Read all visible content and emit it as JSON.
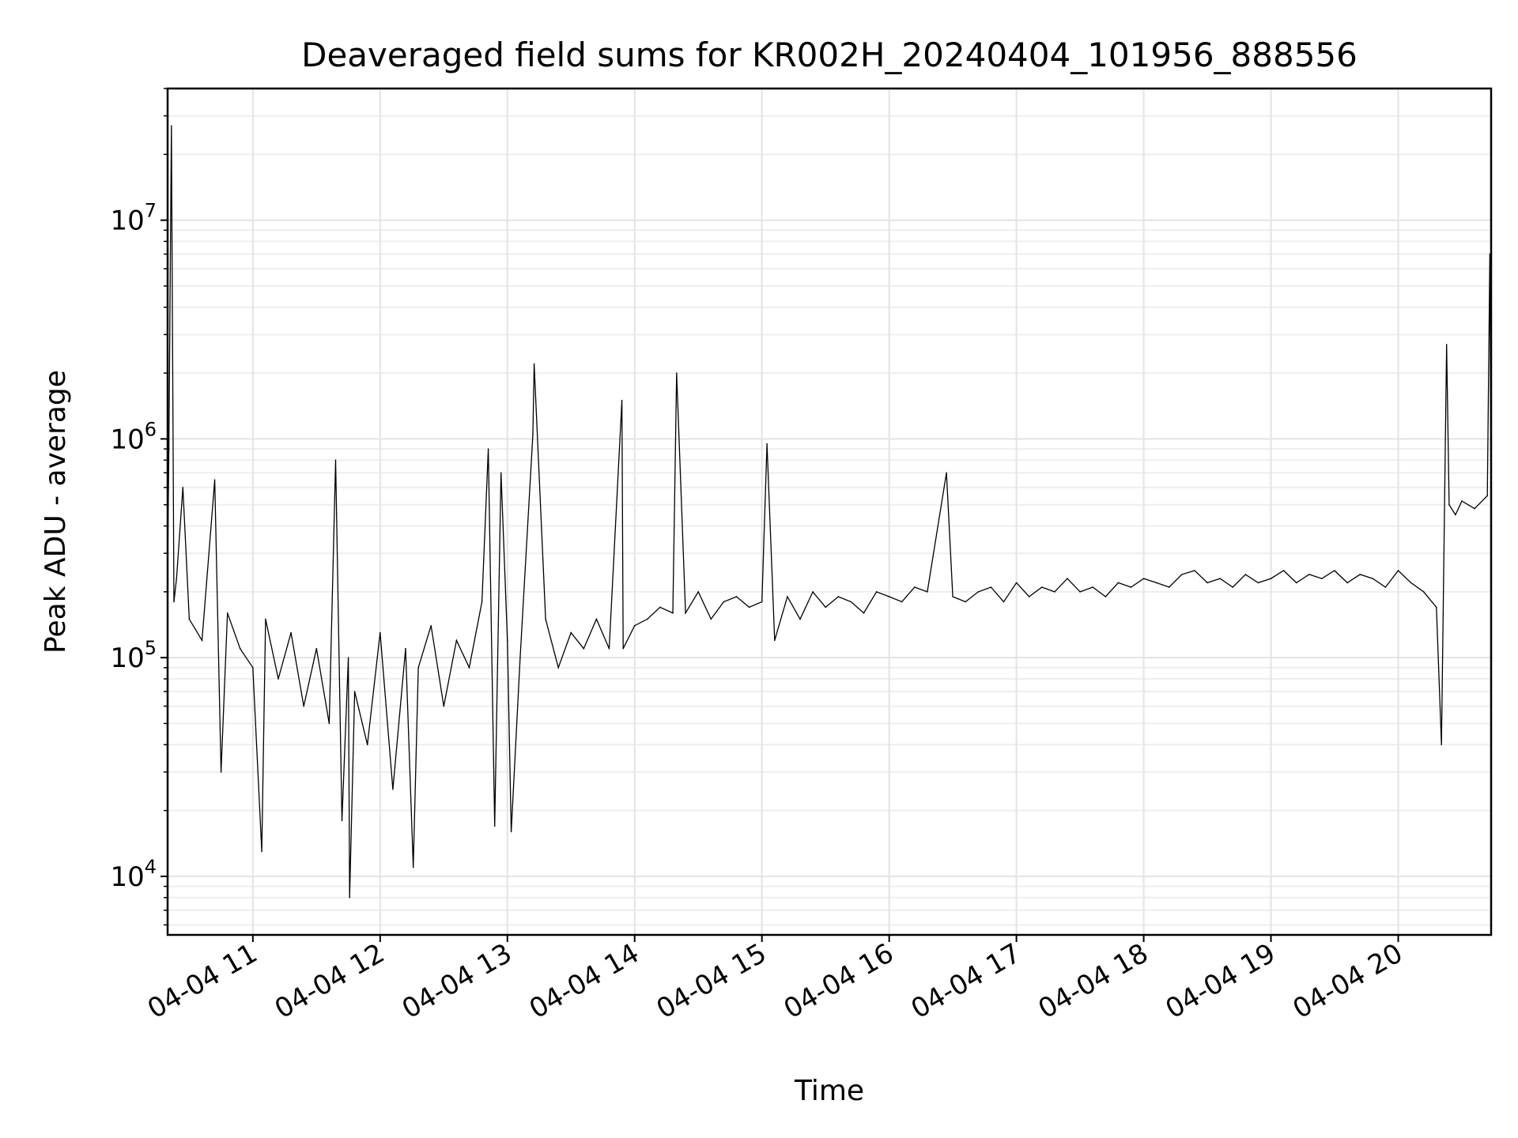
{
  "chart_data": {
    "type": "line",
    "title": "Deaveraged field sums for KR002H_20240404_101956_888556",
    "xlabel": "Time",
    "ylabel": "Peak ADU - average",
    "yscale": "log",
    "ylim": [
      5400,
      40000000
    ],
    "xlim_hours": [
      10.33,
      20.73
    ],
    "grid": "on",
    "x_ticks": [
      {
        "hour": 11,
        "label": "04-04 11"
      },
      {
        "hour": 12,
        "label": "04-04 12"
      },
      {
        "hour": 13,
        "label": "04-04 13"
      },
      {
        "hour": 14,
        "label": "04-04 14"
      },
      {
        "hour": 15,
        "label": "04-04 15"
      },
      {
        "hour": 16,
        "label": "04-04 16"
      },
      {
        "hour": 17,
        "label": "04-04 17"
      },
      {
        "hour": 18,
        "label": "04-04 18"
      },
      {
        "hour": 19,
        "label": "04-04 19"
      },
      {
        "hour": 20,
        "label": "04-04 20"
      }
    ],
    "y_ticks": [
      {
        "value": 10000,
        "base": "10",
        "exp": "4"
      },
      {
        "value": 100000,
        "base": "10",
        "exp": "5"
      },
      {
        "value": 1000000,
        "base": "10",
        "exp": "6"
      },
      {
        "value": 10000000,
        "base": "10",
        "exp": "7"
      }
    ],
    "series": [
      {
        "name": "Peak ADU - average",
        "color": "#000000",
        "x_hours": [
          10.33,
          10.34,
          10.36,
          10.38,
          10.4,
          10.45,
          10.5,
          10.6,
          10.7,
          10.75,
          10.8,
          10.9,
          11.0,
          11.07,
          11.1,
          11.2,
          11.3,
          11.4,
          11.5,
          11.6,
          11.65,
          11.7,
          11.75,
          11.76,
          11.8,
          11.9,
          12.0,
          12.1,
          12.2,
          12.26,
          12.3,
          12.4,
          12.5,
          12.6,
          12.7,
          12.8,
          12.85,
          12.9,
          12.95,
          13.0,
          13.03,
          13.1,
          13.2,
          13.21,
          13.3,
          13.4,
          13.5,
          13.6,
          13.7,
          13.8,
          13.9,
          13.91,
          14.0,
          14.1,
          14.2,
          14.3,
          14.33,
          14.4,
          14.5,
          14.6,
          14.7,
          14.8,
          14.9,
          15.0,
          15.04,
          15.1,
          15.2,
          15.3,
          15.4,
          15.5,
          15.6,
          15.7,
          15.8,
          15.9,
          16.0,
          16.1,
          16.2,
          16.3,
          16.45,
          16.5,
          16.6,
          16.7,
          16.8,
          16.9,
          17.0,
          17.1,
          17.2,
          17.3,
          17.4,
          17.5,
          17.6,
          17.7,
          17.8,
          17.9,
          18.0,
          18.1,
          18.2,
          18.3,
          18.4,
          18.5,
          18.6,
          18.7,
          18.8,
          18.9,
          19.0,
          19.1,
          19.2,
          19.3,
          19.4,
          19.5,
          19.6,
          19.7,
          19.8,
          19.9,
          20.0,
          20.1,
          20.2,
          20.3,
          20.34,
          20.38,
          20.4,
          20.45,
          20.5,
          20.6,
          20.7,
          20.72,
          20.73
        ],
        "values": [
          250000,
          900000,
          27000000,
          180000,
          230000,
          600000,
          150000,
          120000,
          650000,
          30000,
          160000,
          110000,
          90000,
          13000,
          150000,
          80000,
          130000,
          60000,
          110000,
          50000,
          800000,
          18000,
          100000,
          8000,
          70000,
          40000,
          130000,
          25000,
          110000,
          11000,
          90000,
          140000,
          60000,
          120000,
          90000,
          180000,
          900000,
          17000,
          700000,
          120000,
          16000,
          100000,
          1050000,
          2200000,
          150000,
          90000,
          130000,
          110000,
          150000,
          110000,
          1500000,
          110000,
          140000,
          150000,
          170000,
          160000,
          2000000,
          160000,
          200000,
          150000,
          180000,
          190000,
          170000,
          180000,
          950000,
          120000,
          190000,
          150000,
          200000,
          170000,
          190000,
          180000,
          160000,
          200000,
          190000,
          180000,
          210000,
          200000,
          700000,
          190000,
          180000,
          200000,
          210000,
          180000,
          220000,
          190000,
          210000,
          200000,
          230000,
          200000,
          210000,
          190000,
          220000,
          210000,
          230000,
          220000,
          210000,
          240000,
          250000,
          220000,
          230000,
          210000,
          240000,
          220000,
          230000,
          250000,
          220000,
          240000,
          230000,
          250000,
          220000,
          240000,
          230000,
          210000,
          250000,
          220000,
          200000,
          170000,
          40000,
          2700000,
          500000,
          450000,
          520000,
          480000,
          550000,
          7000000,
          400000
        ]
      }
    ]
  }
}
